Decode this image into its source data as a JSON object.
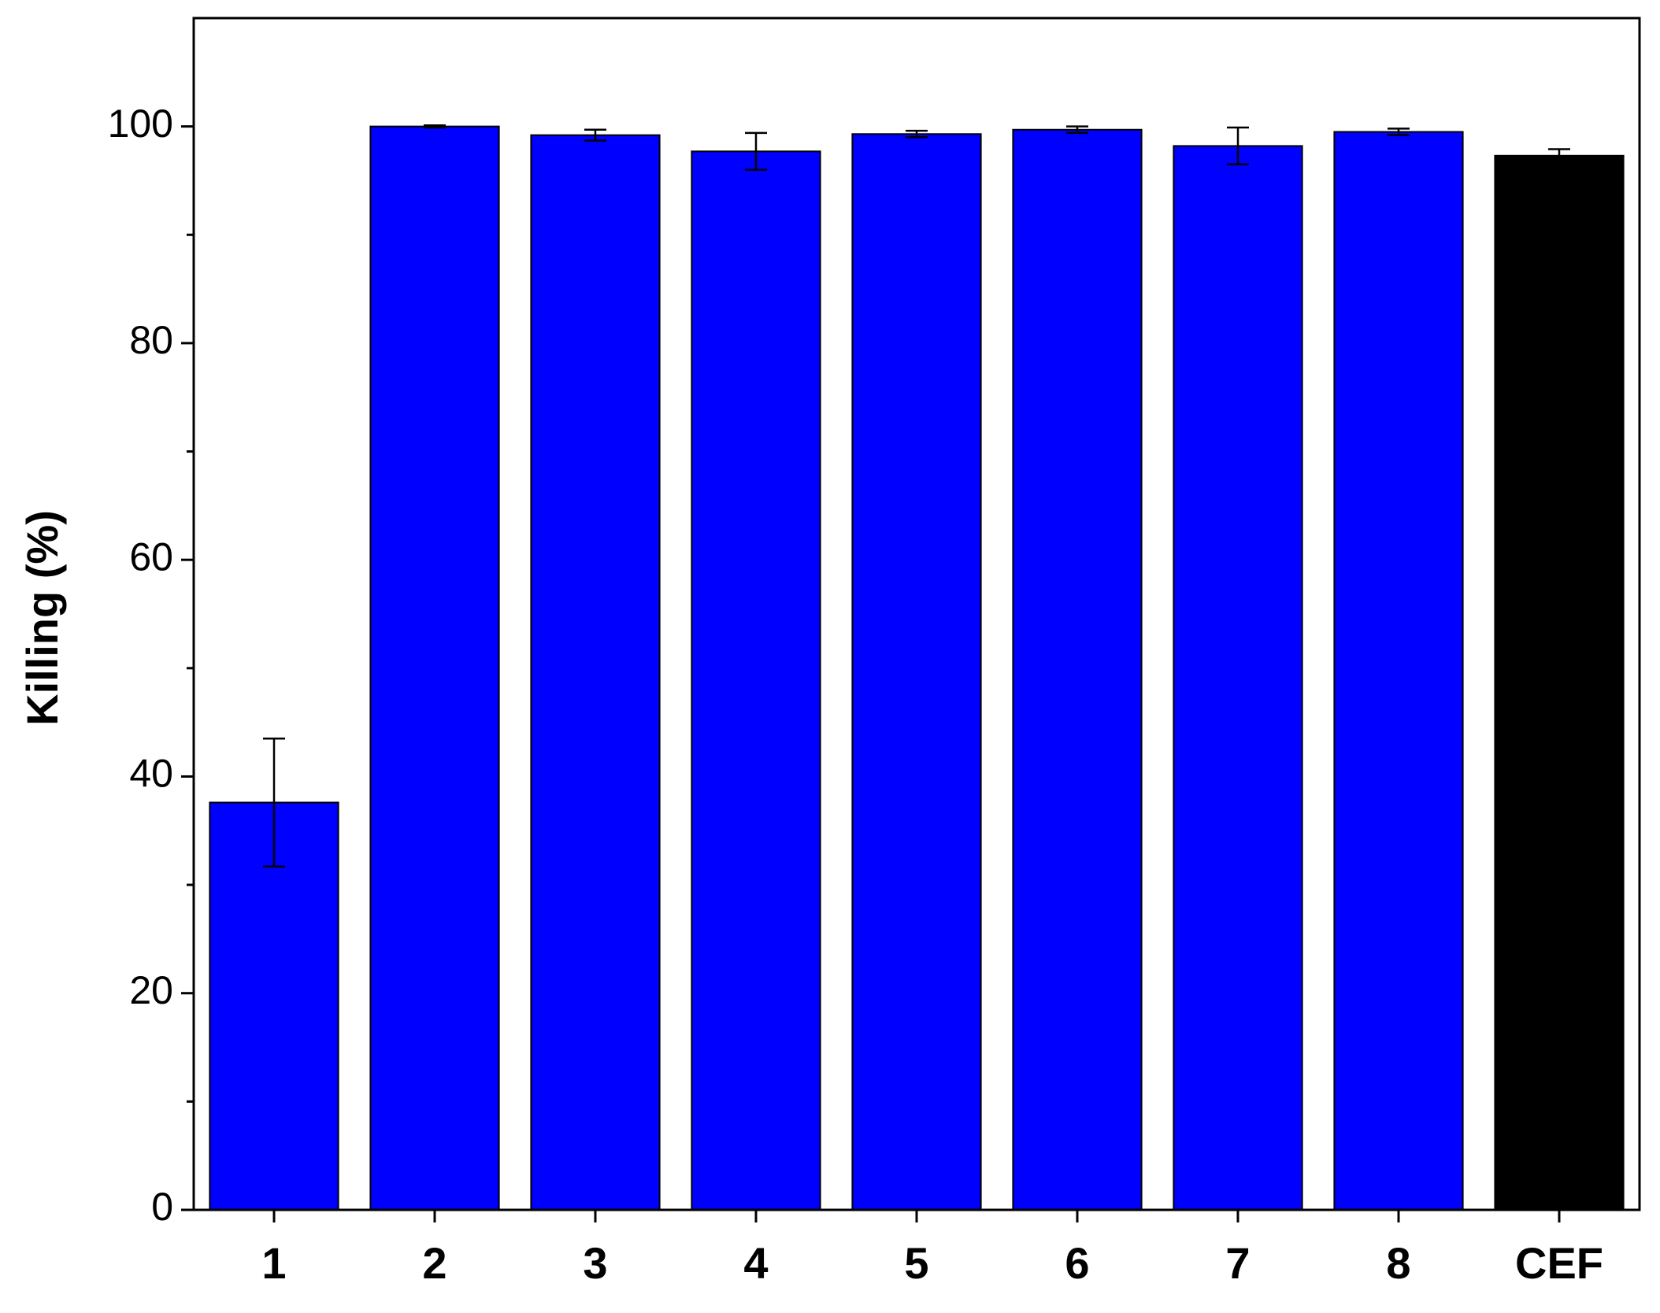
{
  "chart_data": {
    "type": "bar",
    "y_label": "Killing (%)",
    "categories": [
      "1",
      "2",
      "3",
      "4",
      "5",
      "6",
      "7",
      "8",
      "CEF"
    ],
    "values": [
      37.6,
      100,
      99.2,
      97.7,
      99.3,
      99.7,
      98.2,
      99.5,
      97.3
    ],
    "errors": [
      5.9,
      0.1,
      0.5,
      1.7,
      0.3,
      0.3,
      1.7,
      0.3,
      0.6
    ],
    "colors": [
      "#0000ff",
      "#0000ff",
      "#0000ff",
      "#0000ff",
      "#0000ff",
      "#0000ff",
      "#0000ff",
      "#0000ff",
      "#000000"
    ],
    "ylim": [
      0,
      110
    ],
    "yticks": [
      0,
      20,
      40,
      60,
      80,
      100
    ],
    "minor_yticks": [
      10,
      30,
      50,
      70,
      90
    ]
  }
}
